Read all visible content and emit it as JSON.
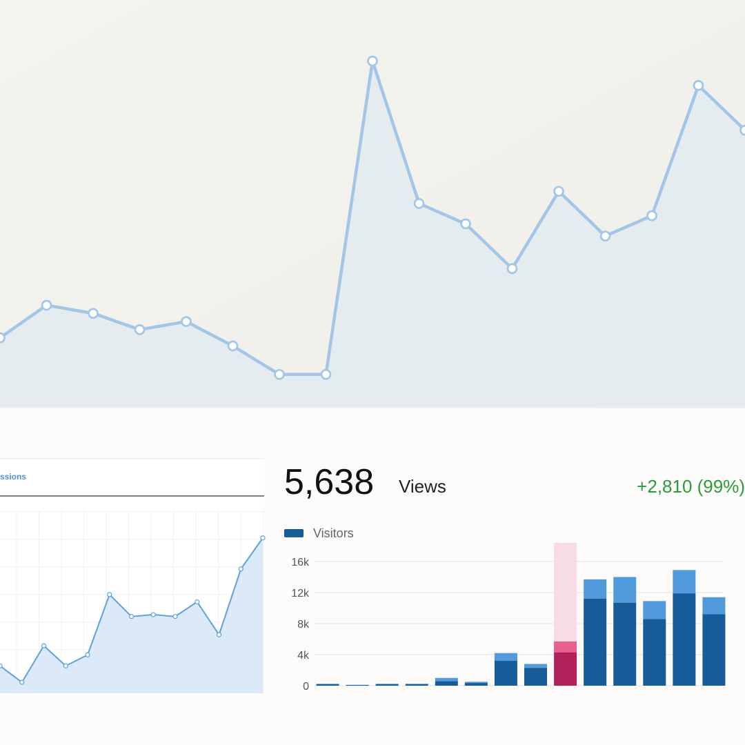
{
  "chart_data": [
    {
      "type": "line",
      "values": [
        17,
        25,
        23,
        19,
        21,
        15,
        8,
        8,
        85,
        50,
        45,
        34,
        53,
        42,
        47,
        79,
        68
      ],
      "ylim": [
        0,
        100
      ],
      "color": "#a3c6e8",
      "fill": "#e5ecef",
      "markers": true
    },
    {
      "type": "line",
      "tab": "ssions",
      "values": [
        15,
        6,
        26,
        15,
        21,
        54,
        42,
        43,
        42,
        50,
        32,
        68,
        85
      ],
      "ylim": [
        0,
        100
      ],
      "color": "#5ea1e0",
      "fill": "#dce9f8",
      "markers": true,
      "grid": true
    },
    {
      "type": "stacked-bar",
      "headline": "5,638",
      "headline_unit": "Views",
      "change": "+2,810 (99%)",
      "series": [
        {
          "name": "Visitors",
          "color": "#175c99",
          "values": [
            200,
            100,
            200,
            200,
            600,
            350,
            3200,
            2300,
            4300,
            11200,
            10700,
            8600,
            11900,
            9200
          ]
        },
        {
          "color": "#519bdc",
          "values": [
            50,
            0,
            50,
            50,
            400,
            150,
            1000,
            500,
            1400,
            2500,
            3300,
            2300,
            3000,
            2200
          ]
        }
      ],
      "highlight": 8,
      "highlight_colors": [
        "#b0215a",
        "#e8608f",
        "#f7dbe6"
      ],
      "ylim": [
        0,
        18400
      ],
      "yticks": [
        0,
        {
          "value": 4000,
          "label": "4k"
        },
        {
          "value": 8000,
          "label": "8k"
        },
        {
          "value": 12000,
          "label": "12k"
        },
        {
          "value": 16000,
          "label": "16k"
        }
      ],
      "grid": true
    }
  ]
}
